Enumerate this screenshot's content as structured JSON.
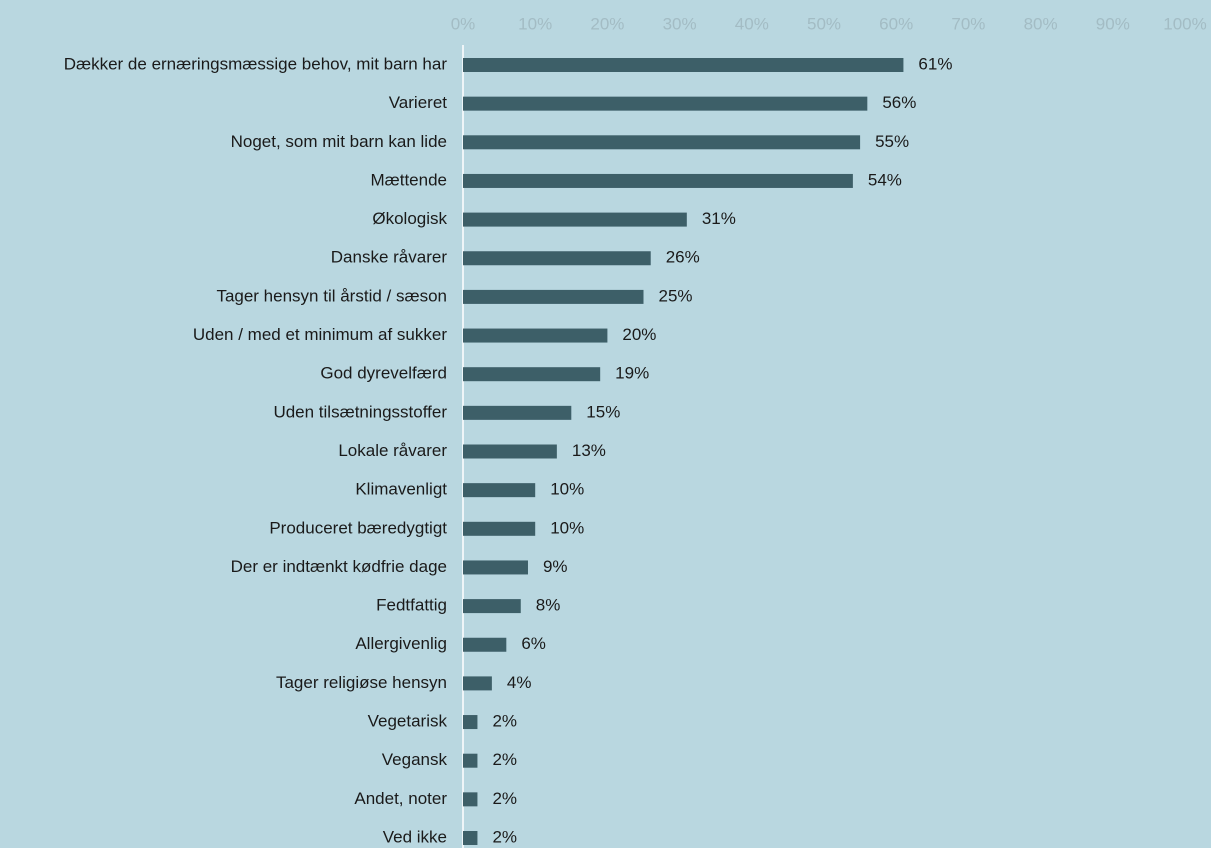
{
  "chart_data": {
    "type": "barh",
    "categories": [
      "Dækker de ernæringsmæssige behov, mit barn har",
      "Varieret",
      "Noget, som mit barn kan lide",
      "Mættende",
      "Økologisk",
      "Danske råvarer",
      "Tager hensyn til årstid / sæson",
      "Uden / med et minimum af sukker",
      "God dyrevelfærd",
      "Uden tilsætningsstoffer",
      "Lokale råvarer",
      "Klimavenligt",
      "Produceret bæredygtigt",
      "Der er indtænkt kødfrie dage",
      "Fedtfattig",
      "Allergivenlig",
      "Tager religiøse hensyn",
      "Vegetarisk",
      "Vegansk",
      "Andet, noter",
      "Ved ikke"
    ],
    "values": [
      61,
      56,
      55,
      54,
      31,
      26,
      25,
      20,
      19,
      15,
      13,
      10,
      10,
      9,
      8,
      6,
      4,
      2,
      2,
      2,
      2
    ],
    "value_labels": [
      "61%",
      "56%",
      "55%",
      "54%",
      "31%",
      "26%",
      "25%",
      "20%",
      "19%",
      "15%",
      "13%",
      "10%",
      "10%",
      "9%",
      "8%",
      "6%",
      "4%",
      "2%",
      "2%",
      "2%",
      "2%"
    ],
    "color": "#3d5f68",
    "xlim": [
      0,
      100
    ],
    "xticks": [
      {
        "value": 0,
        "label": "0%"
      },
      {
        "value": 10,
        "label": "10%"
      },
      {
        "value": 20,
        "label": "20%"
      },
      {
        "value": 30,
        "label": "30%"
      },
      {
        "value": 40,
        "label": "40%"
      },
      {
        "value": 50,
        "label": "50%"
      },
      {
        "value": 60,
        "label": "60%"
      },
      {
        "value": 70,
        "label": "70%"
      },
      {
        "value": 80,
        "label": "80%"
      },
      {
        "value": 90,
        "label": "90%"
      },
      {
        "value": 100,
        "label": "100%"
      }
    ],
    "grid": false
  }
}
